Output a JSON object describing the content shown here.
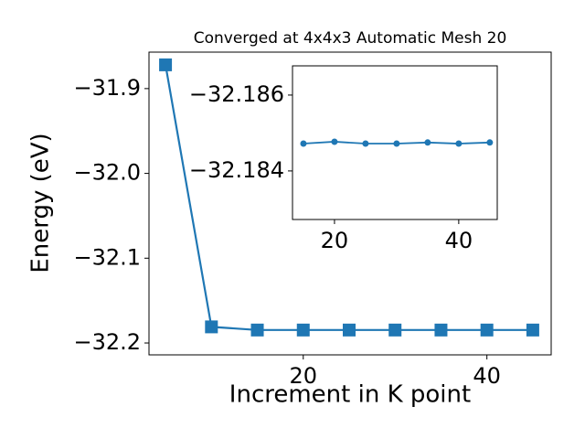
{
  "chart_data": [
    {
      "type": "line",
      "title": "Converged at 4x4x3 Automatic Mesh 20",
      "x_label": "Increment in K point",
      "y_label": "Energy (eV)",
      "x": [
        5,
        10,
        15,
        20,
        25,
        30,
        35,
        40,
        45
      ],
      "series": [
        {
          "color": "#1f77b4",
          "marker": "square",
          "values": [
            -31.872,
            -32.181,
            -32.1847,
            -32.1847,
            -32.1847,
            -32.1847,
            -32.1847,
            -32.1847,
            -32.1847
          ]
        }
      ],
      "xlim": [
        3.2,
        47.0
      ],
      "ylim": [
        -32.214,
        -31.857
      ],
      "xticks": [
        20,
        40
      ],
      "yticks": [
        {
          "value": -32.2,
          "label": "−32.2"
        },
        {
          "value": -32.1,
          "label": "−32.1"
        },
        {
          "value": -32.0,
          "label": "−32.0"
        },
        {
          "value": -31.9,
          "label": "−31.9"
        }
      ]
    },
    {
      "type": "line",
      "x": [
        15,
        20,
        25,
        30,
        35,
        40,
        45
      ],
      "series": [
        {
          "color": "#1f77b4",
          "marker": "circle",
          "values": [
            -32.18472,
            -32.18477,
            -32.18472,
            -32.18472,
            -32.18475,
            -32.18472,
            -32.18475
          ]
        }
      ],
      "xlim": [
        13.24,
        46.2
      ],
      "ylim": [
        -32.18272,
        -32.18677
      ],
      "xticks": [
        20,
        40
      ],
      "yticks": [
        {
          "value": -32.184,
          "label": "−32.184"
        },
        {
          "value": -32.186,
          "label": "−32.186"
        }
      ]
    }
  ]
}
